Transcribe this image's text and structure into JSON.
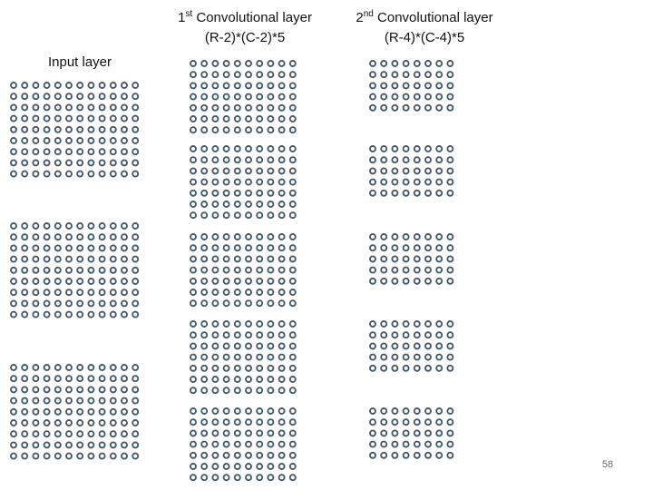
{
  "labels": {
    "input": "Input layer",
    "conv1": {
      "ordinal": "1",
      "suffix": "st",
      "name": "Convolutional layer",
      "formula": "(R-2)*(C-2)*5"
    },
    "conv2": {
      "ordinal": "2",
      "suffix": "nd",
      "name": "Convolutional layer",
      "formula": "(R-4)*(C-4)*5"
    }
  },
  "page_number": "58",
  "colors": {
    "node": "#44596a",
    "background": "#ffffff"
  },
  "layers": [
    {
      "name": "input",
      "grids": 3,
      "rows": 9,
      "cols": 12
    },
    {
      "name": "conv1",
      "grids": 5,
      "rows": 7,
      "cols": 10
    },
    {
      "name": "conv2",
      "grids": 5,
      "rows": 5,
      "cols": 8
    }
  ]
}
